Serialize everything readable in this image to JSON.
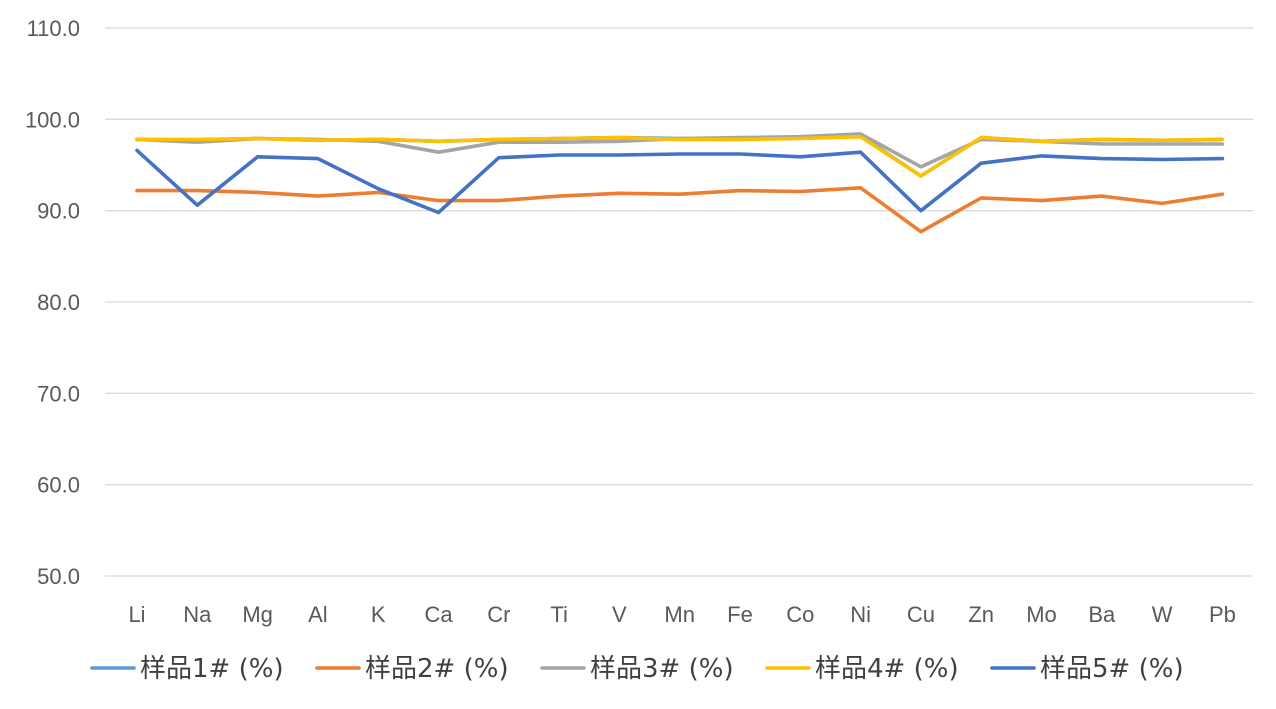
{
  "chart_data": {
    "type": "line",
    "title": "",
    "xlabel": "",
    "ylabel": "",
    "ylim": [
      50,
      110
    ],
    "yticks": [
      "50.0",
      "60.0",
      "70.0",
      "80.0",
      "90.0",
      "100.0",
      "110.0"
    ],
    "grid": true,
    "legend_position": "bottom",
    "categories": [
      "Li",
      "Na",
      "Mg",
      "Al",
      "K",
      "Ca",
      "Cr",
      "Ti",
      "V",
      "Mn",
      "Fe",
      "Co",
      "Ni",
      "Cu",
      "Zn",
      "Mo",
      "Ba",
      "W",
      "Pb"
    ],
    "series": [
      {
        "name": "样品1# (%)",
        "color": "#5b9bd5",
        "values": [
          97.8,
          97.7,
          97.9,
          97.7,
          97.8,
          97.6,
          97.8,
          97.9,
          98.0,
          97.9,
          97.9,
          98.0,
          98.2,
          93.8,
          98.0,
          97.6,
          97.8,
          97.7,
          97.8
        ]
      },
      {
        "name": "样品2# (%)",
        "color": "#ed7d31",
        "values": [
          92.2,
          92.2,
          92.0,
          91.6,
          92.0,
          91.1,
          91.1,
          91.6,
          91.9,
          91.8,
          92.2,
          92.1,
          92.5,
          87.7,
          91.4,
          91.1,
          91.6,
          90.8,
          91.8
        ]
      },
      {
        "name": "样品3# (%)",
        "color": "#a5a5a5",
        "values": [
          97.8,
          97.5,
          97.9,
          97.8,
          97.6,
          96.4,
          97.5,
          97.5,
          97.6,
          97.9,
          98.0,
          98.1,
          98.4,
          94.8,
          97.8,
          97.6,
          97.3,
          97.3,
          97.3
        ]
      },
      {
        "name": "样品4# (%)",
        "color": "#ffc000",
        "values": [
          97.8,
          97.8,
          97.9,
          97.7,
          97.8,
          97.6,
          97.8,
          97.9,
          98.0,
          97.8,
          97.8,
          97.9,
          98.1,
          93.8,
          98.0,
          97.6,
          97.8,
          97.7,
          97.8
        ]
      },
      {
        "name": "样品5# (%)",
        "color": "#4472c4",
        "values": [
          96.6,
          90.6,
          95.9,
          95.7,
          92.4,
          89.8,
          95.8,
          96.1,
          96.1,
          96.2,
          96.2,
          95.9,
          96.4,
          90.0,
          95.2,
          96.0,
          95.7,
          95.6,
          95.7
        ]
      }
    ]
  }
}
